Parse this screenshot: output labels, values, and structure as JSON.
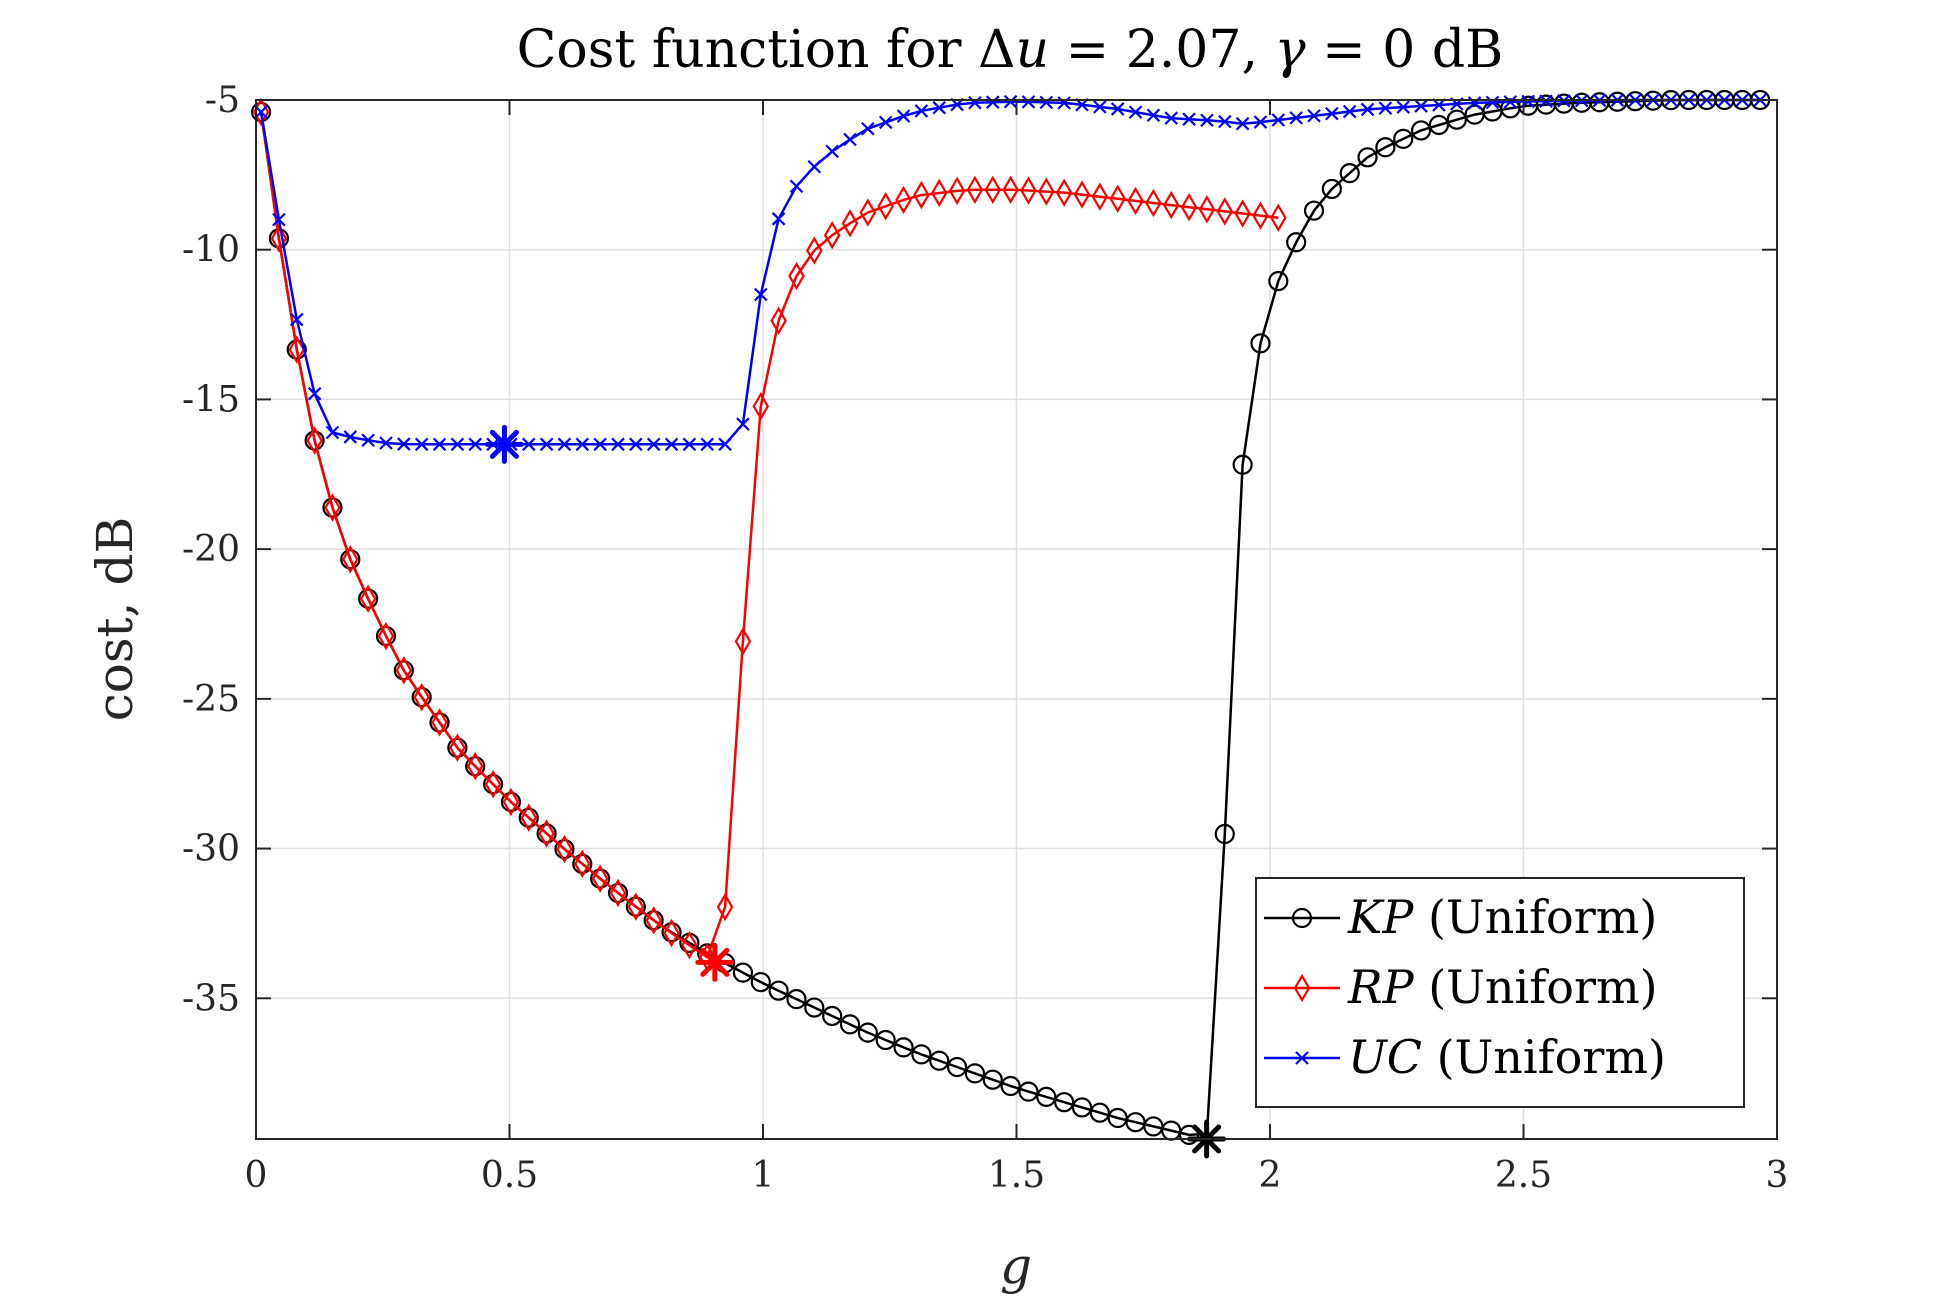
{
  "chart_data": {
    "type": "line",
    "title_prefix": "Cost function for ",
    "title_delta": "Δ",
    "title_u": "u",
    "title_eq1": " = 2.07, ",
    "title_gamma": "γ",
    "title_eq2": " = 0 dB",
    "title": "Cost function for Δu = 2.07, γ = 0 dB",
    "xlabel": "g",
    "ylabel": "cost, dB",
    "xlim": [
      0,
      3
    ],
    "ylim": [
      -39.7,
      -5
    ],
    "xticks": [
      0,
      0.5,
      1,
      1.5,
      2,
      2.5,
      3
    ],
    "xtick_labels": [
      "0",
      "0.5",
      "1",
      "1.5",
      "2",
      "2.5",
      "3"
    ],
    "yticks": [
      -5,
      -10,
      -15,
      -20,
      -25,
      -30,
      -35
    ],
    "ytick_labels": [
      "-5",
      "-10",
      "-15",
      "-20",
      "-25",
      "-30",
      "-35"
    ],
    "grid": true,
    "legend_position": "bottom-right",
    "series": [
      {
        "name_italic": "KP",
        "name_suffix": " (Uniform)",
        "name": "KP (Uniform)",
        "color": "#000000",
        "marker": "circle",
        "minimum": {
          "x": 1.875,
          "y": -39.7
        },
        "knots": [
          [
            0.01,
            -5.4
          ],
          [
            0.045,
            -9.6
          ],
          [
            0.08,
            -13.3
          ],
          [
            0.11,
            -16.0
          ],
          [
            0.14,
            -18.0
          ],
          [
            0.17,
            -19.7
          ],
          [
            0.205,
            -21.1
          ],
          [
            0.24,
            -22.3
          ],
          [
            0.27,
            -23.4
          ],
          [
            0.3,
            -24.3
          ],
          [
            0.4,
            -26.7
          ],
          [
            0.5,
            -28.4
          ],
          [
            0.6,
            -29.9
          ],
          [
            0.7,
            -31.3
          ],
          [
            0.8,
            -32.6
          ],
          [
            0.9,
            -33.6
          ],
          [
            1.0,
            -34.5
          ],
          [
            1.1,
            -35.3
          ],
          [
            1.2,
            -36.1
          ],
          [
            1.3,
            -36.8
          ],
          [
            1.4,
            -37.4
          ],
          [
            1.5,
            -38.0
          ],
          [
            1.6,
            -38.5
          ],
          [
            1.7,
            -39.0
          ],
          [
            1.8,
            -39.4
          ],
          [
            1.875,
            -39.7
          ],
          [
            1.91,
            -29.8
          ],
          [
            1.945,
            -17.3
          ],
          [
            1.98,
            -13.2
          ],
          [
            2.015,
            -11.1
          ],
          [
            2.05,
            -9.8
          ],
          [
            2.1,
            -8.3
          ],
          [
            2.2,
            -6.8
          ],
          [
            2.3,
            -6.0
          ],
          [
            2.4,
            -5.5
          ],
          [
            2.5,
            -5.2
          ],
          [
            2.6,
            -5.1
          ],
          [
            2.7,
            -5.05
          ],
          [
            2.8,
            -5.0
          ],
          [
            2.97,
            -5.0
          ]
        ]
      },
      {
        "name_italic": "RP",
        "name_suffix": " (Uniform)",
        "name": "RP (Uniform)",
        "color": "#ff0000",
        "marker": "diamond",
        "minimum": {
          "x": 0.905,
          "y": -33.8
        },
        "knots": [
          [
            0.01,
            -5.4
          ],
          [
            0.045,
            -9.6
          ],
          [
            0.08,
            -13.3
          ],
          [
            0.11,
            -16.0
          ],
          [
            0.14,
            -18.0
          ],
          [
            0.17,
            -19.7
          ],
          [
            0.205,
            -21.1
          ],
          [
            0.24,
            -22.3
          ],
          [
            0.27,
            -23.4
          ],
          [
            0.3,
            -24.3
          ],
          [
            0.4,
            -26.7
          ],
          [
            0.5,
            -28.4
          ],
          [
            0.6,
            -29.9
          ],
          [
            0.7,
            -31.3
          ],
          [
            0.8,
            -32.6
          ],
          [
            0.905,
            -33.8
          ],
          [
            0.94,
            -30.6
          ],
          [
            0.975,
            -17.7
          ],
          [
            1.01,
            -13.5
          ],
          [
            1.045,
            -11.6
          ],
          [
            1.08,
            -10.4
          ],
          [
            1.12,
            -9.7
          ],
          [
            1.2,
            -8.8
          ],
          [
            1.3,
            -8.2
          ],
          [
            1.4,
            -8.0
          ],
          [
            1.5,
            -8.0
          ],
          [
            1.6,
            -8.1
          ],
          [
            1.7,
            -8.3
          ],
          [
            1.8,
            -8.5
          ],
          [
            1.9,
            -8.7
          ],
          [
            2.0,
            -8.9
          ],
          [
            2.05,
            -9.0
          ]
        ]
      },
      {
        "name_italic": "UC",
        "name_suffix": " (Uniform)",
        "name": "UC (Uniform)",
        "color": "#0000ff",
        "marker": "x",
        "minimum": {
          "x": 0.49,
          "y": -16.5
        },
        "knots": [
          [
            0.01,
            -5.4
          ],
          [
            0.03,
            -7.4
          ],
          [
            0.05,
            -9.5
          ],
          [
            0.07,
            -11.5
          ],
          [
            0.09,
            -13.1
          ],
          [
            0.11,
            -14.5
          ],
          [
            0.13,
            -15.6
          ],
          [
            0.15,
            -16.1
          ],
          [
            0.17,
            -16.2
          ],
          [
            0.2,
            -16.3
          ],
          [
            0.25,
            -16.45
          ],
          [
            0.3,
            -16.5
          ],
          [
            0.5,
            -16.5
          ],
          [
            0.7,
            -16.5
          ],
          [
            0.95,
            -16.5
          ],
          [
            0.97,
            -15.2
          ],
          [
            0.99,
            -12.0
          ],
          [
            1.01,
            -10.2
          ],
          [
            1.03,
            -9.0
          ],
          [
            1.05,
            -8.2
          ],
          [
            1.08,
            -7.6
          ],
          [
            1.12,
            -6.9
          ],
          [
            1.2,
            -6.0
          ],
          [
            1.3,
            -5.4
          ],
          [
            1.4,
            -5.1
          ],
          [
            1.5,
            -5.05
          ],
          [
            1.6,
            -5.1
          ],
          [
            1.7,
            -5.3
          ],
          [
            1.8,
            -5.6
          ],
          [
            1.9,
            -5.7
          ],
          [
            1.95,
            -5.8
          ],
          [
            2.0,
            -5.7
          ],
          [
            2.1,
            -5.5
          ],
          [
            2.2,
            -5.3
          ],
          [
            2.3,
            -5.2
          ],
          [
            2.4,
            -5.1
          ],
          [
            2.5,
            -5.05
          ],
          [
            2.7,
            -5.0
          ],
          [
            2.85,
            -5.0
          ],
          [
            3.0,
            -5.0
          ]
        ]
      }
    ]
  }
}
